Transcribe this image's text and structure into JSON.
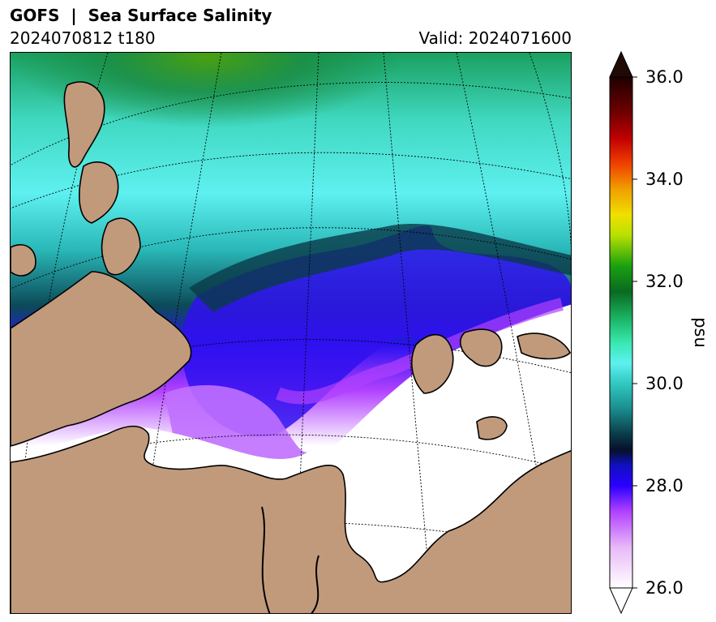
{
  "header": {
    "title": "GOFS  |  Sea Surface Salinity",
    "run": "2024070812 t180",
    "valid": "Valid: 2024071600"
  },
  "colorbar": {
    "unit": "psu",
    "min": 26.0,
    "max": 36.0,
    "extend": "both",
    "ticks": [
      "26.0",
      "28.0",
      "30.0",
      "32.0",
      "34.0",
      "36.0"
    ],
    "stops": [
      {
        "value": 26.0,
        "color": "#ffffff"
      },
      {
        "value": 26.8,
        "color": "#e8b8f8"
      },
      {
        "value": 27.5,
        "color": "#b040ff"
      },
      {
        "value": 28.0,
        "color": "#2a00ff"
      },
      {
        "value": 28.4,
        "color": "#1010c0"
      },
      {
        "value": 28.7,
        "color": "#06102a"
      },
      {
        "value": 29.0,
        "color": "#0a3a48"
      },
      {
        "value": 29.5,
        "color": "#1a8c8c"
      },
      {
        "value": 30.0,
        "color": "#30c8c0"
      },
      {
        "value": 30.4,
        "color": "#5ef0f0"
      },
      {
        "value": 30.8,
        "color": "#38e8b0"
      },
      {
        "value": 31.3,
        "color": "#1ab060"
      },
      {
        "value": 31.8,
        "color": "#0a6a20"
      },
      {
        "value": 32.3,
        "color": "#1aa010"
      },
      {
        "value": 32.9,
        "color": "#b8e000"
      },
      {
        "value": 33.3,
        "color": "#f0e000"
      },
      {
        "value": 33.8,
        "color": "#f0a000"
      },
      {
        "value": 34.3,
        "color": "#f04000"
      },
      {
        "value": 34.8,
        "color": "#c00000"
      },
      {
        "value": 35.3,
        "color": "#700000"
      },
      {
        "value": 36.0,
        "color": "#200000"
      }
    ],
    "over_color": "#200a05",
    "under_color": "#ffffff"
  },
  "map": {
    "land_color": "#c19a7c",
    "coast_color": "#000000",
    "ice_free_color": "#ffffff"
  }
}
